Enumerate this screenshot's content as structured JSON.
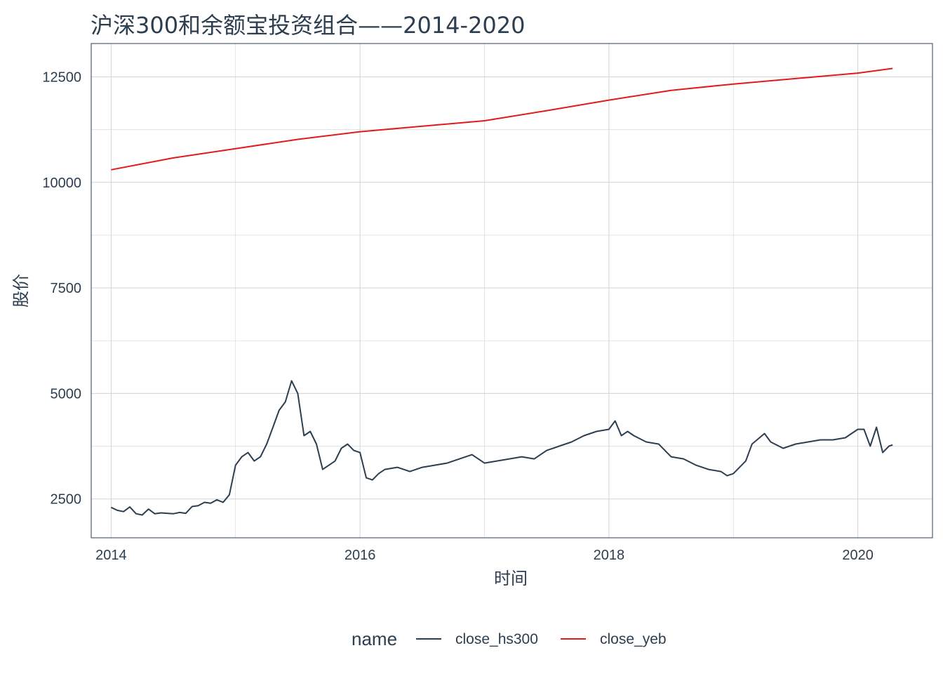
{
  "chart_data": {
    "type": "line",
    "title": "沪深300和余额宝投资组合——2014-2020",
    "xlabel": "时间",
    "ylabel": "股价",
    "xlim": [
      2013.84,
      2020.6
    ],
    "ylim": [
      1580,
      13290
    ],
    "x_ticks": [
      2014,
      2016,
      2018,
      2020
    ],
    "x_tick_labels": [
      "2014",
      "2016",
      "2018",
      "2020"
    ],
    "y_ticks": [
      2500,
      5000,
      7500,
      10000,
      12500
    ],
    "y_tick_labels": [
      "2500",
      "5000",
      "7500",
      "10000",
      "12500"
    ],
    "grid": true,
    "legend": {
      "title": "name",
      "position": "bottom"
    },
    "series": [
      {
        "name": "close_hs300",
        "color": "#2c3e50",
        "points": [
          [
            2014.0,
            2300
          ],
          [
            2014.05,
            2230
          ],
          [
            2014.1,
            2200
          ],
          [
            2014.15,
            2310
          ],
          [
            2014.2,
            2150
          ],
          [
            2014.25,
            2120
          ],
          [
            2014.3,
            2260
          ],
          [
            2014.35,
            2150
          ],
          [
            2014.4,
            2170
          ],
          [
            2014.45,
            2160
          ],
          [
            2014.5,
            2150
          ],
          [
            2014.55,
            2180
          ],
          [
            2014.6,
            2160
          ],
          [
            2014.65,
            2320
          ],
          [
            2014.7,
            2340
          ],
          [
            2014.75,
            2420
          ],
          [
            2014.8,
            2400
          ],
          [
            2014.85,
            2480
          ],
          [
            2014.9,
            2420
          ],
          [
            2014.95,
            2600
          ],
          [
            2015.0,
            3300
          ],
          [
            2015.05,
            3500
          ],
          [
            2015.1,
            3600
          ],
          [
            2015.15,
            3400
          ],
          [
            2015.2,
            3500
          ],
          [
            2015.25,
            3800
          ],
          [
            2015.3,
            4200
          ],
          [
            2015.35,
            4600
          ],
          [
            2015.4,
            4800
          ],
          [
            2015.45,
            5300
          ],
          [
            2015.5,
            5000
          ],
          [
            2015.55,
            4000
          ],
          [
            2015.6,
            4100
          ],
          [
            2015.65,
            3800
          ],
          [
            2015.7,
            3200
          ],
          [
            2015.75,
            3300
          ],
          [
            2015.8,
            3400
          ],
          [
            2015.85,
            3700
          ],
          [
            2015.9,
            3800
          ],
          [
            2015.95,
            3650
          ],
          [
            2016.0,
            3600
          ],
          [
            2016.05,
            3000
          ],
          [
            2016.1,
            2950
          ],
          [
            2016.15,
            3100
          ],
          [
            2016.2,
            3200
          ],
          [
            2016.3,
            3250
          ],
          [
            2016.4,
            3150
          ],
          [
            2016.5,
            3250
          ],
          [
            2016.6,
            3300
          ],
          [
            2016.7,
            3350
          ],
          [
            2016.8,
            3450
          ],
          [
            2016.9,
            3550
          ],
          [
            2017.0,
            3350
          ],
          [
            2017.1,
            3400
          ],
          [
            2017.2,
            3450
          ],
          [
            2017.3,
            3500
          ],
          [
            2017.4,
            3450
          ],
          [
            2017.5,
            3650
          ],
          [
            2017.6,
            3750
          ],
          [
            2017.7,
            3850
          ],
          [
            2017.8,
            4000
          ],
          [
            2017.9,
            4100
          ],
          [
            2018.0,
            4150
          ],
          [
            2018.05,
            4350
          ],
          [
            2018.1,
            4000
          ],
          [
            2018.15,
            4100
          ],
          [
            2018.2,
            4000
          ],
          [
            2018.3,
            3850
          ],
          [
            2018.4,
            3800
          ],
          [
            2018.5,
            3500
          ],
          [
            2018.6,
            3450
          ],
          [
            2018.7,
            3300
          ],
          [
            2018.8,
            3200
          ],
          [
            2018.9,
            3150
          ],
          [
            2018.95,
            3050
          ],
          [
            2019.0,
            3100
          ],
          [
            2019.1,
            3400
          ],
          [
            2019.15,
            3800
          ],
          [
            2019.25,
            4050
          ],
          [
            2019.3,
            3850
          ],
          [
            2019.4,
            3700
          ],
          [
            2019.5,
            3800
          ],
          [
            2019.6,
            3850
          ],
          [
            2019.7,
            3900
          ],
          [
            2019.8,
            3900
          ],
          [
            2019.9,
            3950
          ],
          [
            2020.0,
            4150
          ],
          [
            2020.05,
            4150
          ],
          [
            2020.1,
            3750
          ],
          [
            2020.15,
            4200
          ],
          [
            2020.2,
            3600
          ],
          [
            2020.25,
            3750
          ],
          [
            2020.28,
            3780
          ]
        ]
      },
      {
        "name": "close_yeb",
        "color": "#e31a1c",
        "points": [
          [
            2014.0,
            10300
          ],
          [
            2014.5,
            10580
          ],
          [
            2015.0,
            10800
          ],
          [
            2015.5,
            11020
          ],
          [
            2016.0,
            11200
          ],
          [
            2016.5,
            11330
          ],
          [
            2017.0,
            11460
          ],
          [
            2017.5,
            11700
          ],
          [
            2018.0,
            11950
          ],
          [
            2018.5,
            12180
          ],
          [
            2019.0,
            12330
          ],
          [
            2019.5,
            12460
          ],
          [
            2020.0,
            12590
          ],
          [
            2020.28,
            12700
          ]
        ]
      }
    ]
  }
}
